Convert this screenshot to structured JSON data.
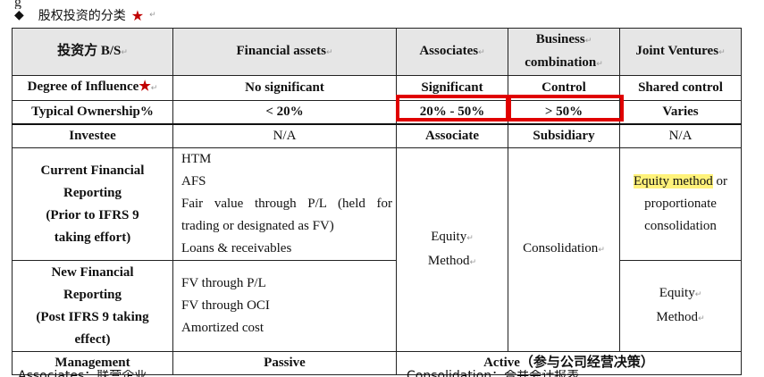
{
  "heading": {
    "bullet": "◆",
    "title": "股权投资的分类",
    "star": "★"
  },
  "table": {
    "headers": [
      "投资方 B/S",
      "Financial assets",
      "Associates",
      "Business combination",
      "Joint Ventures"
    ],
    "header_business_lines": [
      "Business",
      "combination"
    ],
    "rows": {
      "influence": {
        "label": "Degree of Influence",
        "star": "★",
        "values": [
          "No significant",
          "Significant",
          "Control",
          "Shared control"
        ]
      },
      "ownership": {
        "label": "Typical Ownership%",
        "values": [
          "< 20%",
          "20% - 50%",
          "> 50%",
          "Varies"
        ]
      },
      "investee": {
        "label": "Investee",
        "values": [
          "N/A",
          "Associate",
          "Subsidiary",
          "N/A"
        ]
      },
      "current": {
        "label_lines": [
          "Current Financial",
          "Reporting",
          "(Prior to IFRS 9",
          "taking effort)"
        ],
        "fa_lines": [
          "HTM",
          "AFS",
          "Fair value through P/L (held for trading or designated as FV)",
          "Loans & receivables"
        ],
        "jv_highlight": "Equity method",
        "jv_rest": " or proportionate consolidation"
      },
      "new": {
        "label_lines": [
          "New Financial",
          "Reporting",
          "(Post IFRS 9 taking",
          "effect)"
        ],
        "fa_lines": [
          "FV through P/L",
          "FV through OCI",
          "Amortized cost"
        ],
        "jv_lines": [
          "Equity",
          "Method"
        ]
      },
      "equity_method_lines": [
        "Equity",
        "Method"
      ],
      "consolidation": "Consolidation",
      "management": {
        "label": "Management",
        "passive": "Passive",
        "active": "Active（参与公司经营决策）"
      }
    }
  },
  "footer": {
    "left": "Associates：联营企业",
    "right": "Consolidation：合并会计报表"
  },
  "colors": {
    "highlight_box": "#e00000",
    "star": "#c00000",
    "header_bg": "#e6e6e6",
    "text_highlight": "#fff27a"
  }
}
